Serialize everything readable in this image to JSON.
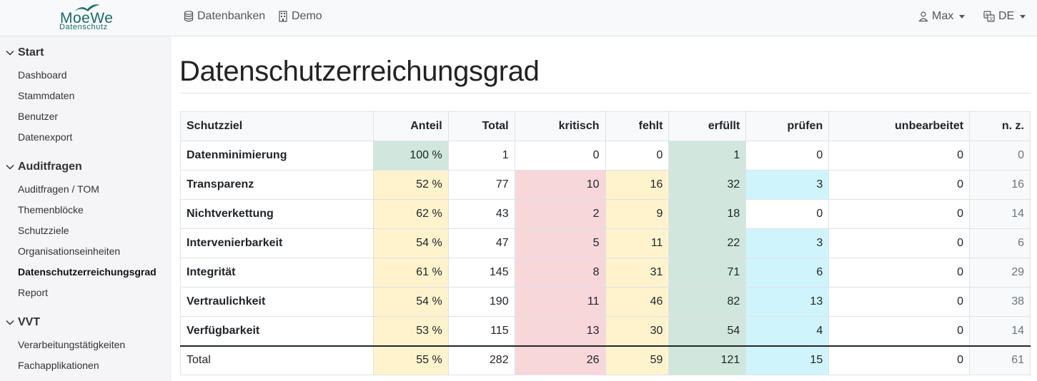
{
  "brand": {
    "name": "MoeWe",
    "sub": "Datenschutz"
  },
  "nav": {
    "databases": "Datenbanken",
    "demo": "Demo",
    "user": "Max",
    "lang": "DE"
  },
  "sidebar": {
    "sections": [
      {
        "label": "Start",
        "items": [
          "Dashboard",
          "Stammdaten",
          "Benutzer",
          "Datenexport"
        ]
      },
      {
        "label": "Auditfragen",
        "items": [
          "Auditfragen / TOM",
          "Themenblöcke",
          "Schutzziele",
          "Organisationseinheiten",
          "Datenschutzerreichungsgrad",
          "Report"
        ]
      },
      {
        "label": "VVT",
        "items": [
          "Verarbeitungstätigkeiten",
          "Fachapplikationen"
        ]
      }
    ]
  },
  "page": {
    "title": "Datenschutzerreichungsgrad"
  },
  "table": {
    "headers": [
      "Schutzziel",
      "Anteil",
      "Total",
      "kritisch",
      "fehlt",
      "erfüllt",
      "prüfen",
      "unbearbeitet",
      "n. z."
    ],
    "rows": [
      [
        "Datenminimierung",
        "100 %",
        "1",
        "0",
        "0",
        "1",
        "0",
        "0",
        "0"
      ],
      [
        "Transparenz",
        "52 %",
        "77",
        "10",
        "16",
        "32",
        "3",
        "0",
        "16"
      ],
      [
        "Nichtverkettung",
        "62 %",
        "43",
        "2",
        "9",
        "18",
        "0",
        "0",
        "14"
      ],
      [
        "Intervenierbarkeit",
        "54 %",
        "47",
        "5",
        "11",
        "22",
        "3",
        "0",
        "6"
      ],
      [
        "Integrität",
        "61 %",
        "145",
        "8",
        "31",
        "71",
        "6",
        "0",
        "29"
      ],
      [
        "Vertraulichkeit",
        "54 %",
        "190",
        "11",
        "46",
        "82",
        "13",
        "0",
        "38"
      ],
      [
        "Verfügbarkeit",
        "53 %",
        "115",
        "13",
        "30",
        "54",
        "4",
        "0",
        "14"
      ]
    ],
    "total": [
      "Total",
      "55 %",
      "282",
      "26",
      "59",
      "121",
      "15",
      "0",
      "61"
    ]
  },
  "colors": {
    "green": "#d1e7dd",
    "yellow": "#fff3cd",
    "red": "#f8d7da",
    "blue": "#cff4fc"
  }
}
